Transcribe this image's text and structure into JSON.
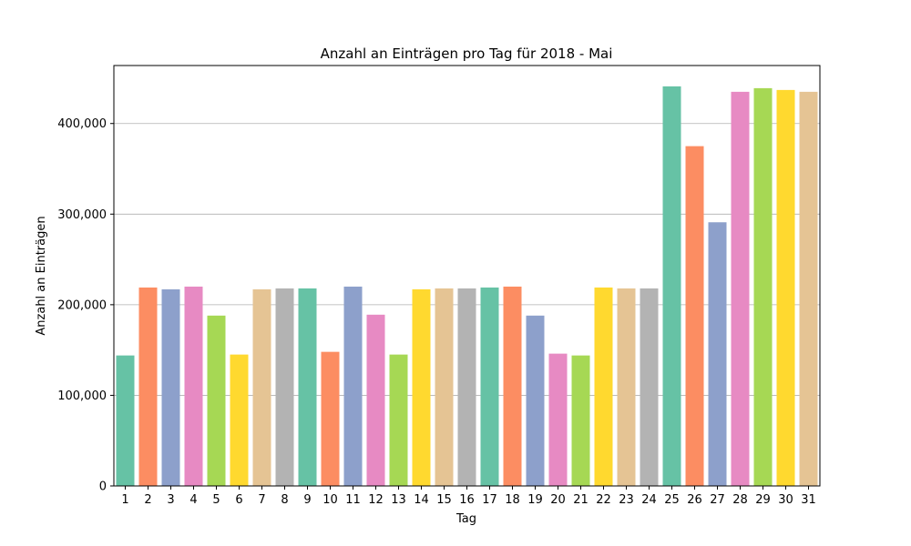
{
  "chart_data": {
    "type": "bar",
    "title": "Anzahl an Einträgen pro Tag für 2018 - Mai",
    "xlabel": "Tag",
    "ylabel": "Anzahl an Einträgen",
    "ylim": [
      0,
      464000
    ],
    "grid": "horizontal",
    "yticks": [
      0,
      100000,
      200000,
      300000,
      400000
    ],
    "ytick_labels": [
      "0",
      "100,000",
      "200,000",
      "300,000",
      "400,000"
    ],
    "categories": [
      "1",
      "2",
      "3",
      "4",
      "5",
      "6",
      "7",
      "8",
      "9",
      "10",
      "11",
      "12",
      "13",
      "14",
      "15",
      "16",
      "17",
      "18",
      "19",
      "20",
      "21",
      "22",
      "23",
      "24",
      "25",
      "26",
      "27",
      "28",
      "29",
      "30",
      "31"
    ],
    "values": [
      144000,
      219000,
      217000,
      220000,
      188000,
      145000,
      217000,
      218000,
      218000,
      148000,
      220000,
      189000,
      145000,
      217000,
      218000,
      218000,
      219000,
      220000,
      188000,
      146000,
      144000,
      219000,
      218000,
      218000,
      441000,
      375000,
      291000,
      435000,
      439000,
      437000,
      435000
    ],
    "palette": [
      "#66c2a5",
      "#fc8d62",
      "#8da0cb",
      "#e78ac3",
      "#a6d854",
      "#ffd92f",
      "#e5c494",
      "#b3b3b3"
    ]
  }
}
